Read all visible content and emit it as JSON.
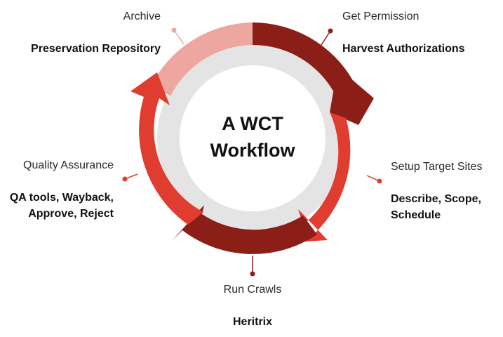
{
  "diagram": {
    "title_line1": "A WCT",
    "title_line2": "Workflow",
    "colors": {
      "dark_red": "#8b1e17",
      "red": "#e03c30",
      "pink": "#eda7a0",
      "ring_inner": "#e4e4e4"
    },
    "stages": [
      {
        "name": "Get Permission",
        "detail_lines": [
          "Harvest Authorizations"
        ],
        "color": "#8b1e17"
      },
      {
        "name": "Setup Target Sites",
        "detail_lines": [
          "Describe, Scope,",
          "Schedule"
        ],
        "color": "#e03c30"
      },
      {
        "name": "Run Crawls",
        "detail_lines": [
          "Heritrix"
        ],
        "color": "#8b1e17"
      },
      {
        "name": "Quality Assurance",
        "detail_lines": [
          "QA tools, Wayback,",
          "Approve, Reject"
        ],
        "color": "#e03c30"
      },
      {
        "name": "Archive",
        "detail_lines": [
          "Preservation Repository"
        ],
        "color": "#eda7a0"
      }
    ]
  }
}
